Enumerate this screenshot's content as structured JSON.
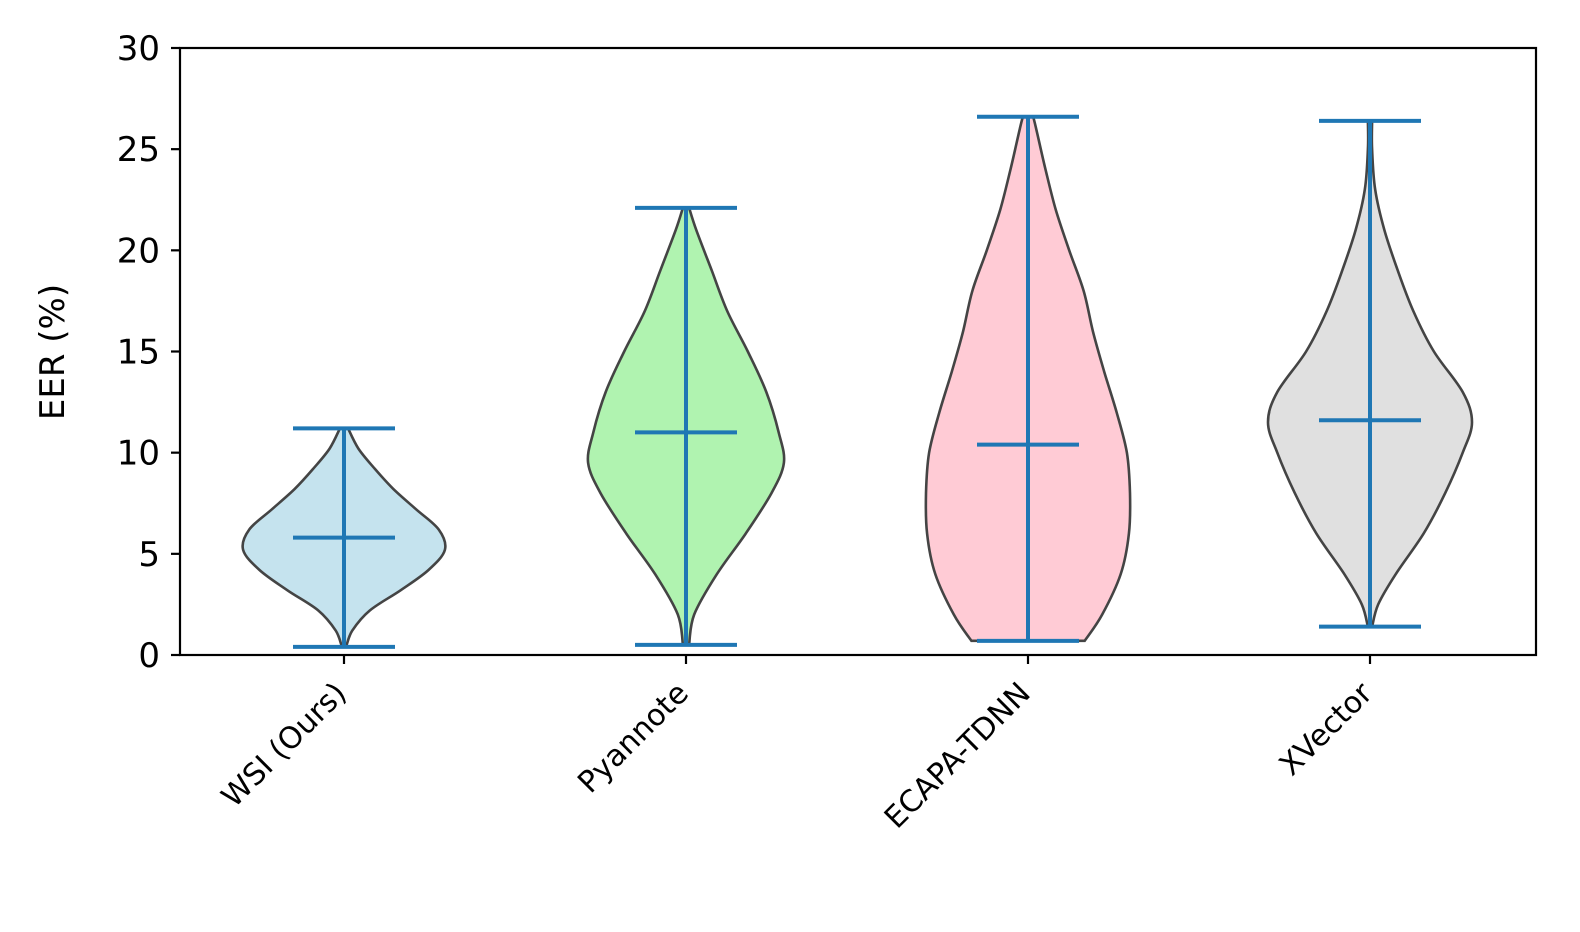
{
  "chart_data": {
    "type": "violin",
    "ylabel": "EER (%)",
    "ylim": [
      0,
      30
    ],
    "yticks": [
      "0",
      "5",
      "10",
      "15",
      "20",
      "25",
      "30"
    ],
    "categories": [
      "WSI (Ours)",
      "Pyannote",
      "ECAPA-TDNN",
      "XVector"
    ],
    "series": [
      {
        "category": "WSI (Ours)",
        "min": 0.4,
        "mean": 5.8,
        "max": 11.2,
        "fill": "#c5e3ee",
        "profile": [
          [
            0.4,
            0.02
          ],
          [
            1.2,
            0.08
          ],
          [
            2.2,
            0.25
          ],
          [
            3.2,
            0.55
          ],
          [
            4.2,
            0.82
          ],
          [
            5.2,
            0.98
          ],
          [
            6.2,
            0.92
          ],
          [
            7.2,
            0.7
          ],
          [
            8.2,
            0.48
          ],
          [
            9.2,
            0.3
          ],
          [
            10.2,
            0.14
          ],
          [
            11.2,
            0.04
          ]
        ]
      },
      {
        "category": "Pyannote",
        "min": 0.5,
        "mean": 11.0,
        "max": 22.1,
        "fill": "#b0f3b0",
        "profile": [
          [
            0.5,
            0.03
          ],
          [
            2.0,
            0.08
          ],
          [
            4.0,
            0.3
          ],
          [
            6.0,
            0.58
          ],
          [
            8.0,
            0.83
          ],
          [
            9.5,
            0.95
          ],
          [
            11.0,
            0.9
          ],
          [
            13.0,
            0.78
          ],
          [
            15.0,
            0.6
          ],
          [
            17.0,
            0.4
          ],
          [
            19.0,
            0.25
          ],
          [
            21.0,
            0.1
          ],
          [
            22.1,
            0.03
          ]
        ]
      },
      {
        "category": "ECAPA-TDNN",
        "min": 0.7,
        "mean": 10.4,
        "max": 26.6,
        "fill": "#ffcbd5",
        "profile": [
          [
            0.7,
            0.55
          ],
          [
            2.0,
            0.72
          ],
          [
            4.0,
            0.9
          ],
          [
            6.0,
            0.98
          ],
          [
            8.0,
            0.99
          ],
          [
            10.0,
            0.96
          ],
          [
            12.0,
            0.86
          ],
          [
            14.0,
            0.74
          ],
          [
            16.0,
            0.63
          ],
          [
            18.0,
            0.54
          ],
          [
            20.0,
            0.4
          ],
          [
            22.0,
            0.27
          ],
          [
            24.0,
            0.17
          ],
          [
            26.0,
            0.08
          ],
          [
            26.6,
            0.05
          ]
        ]
      },
      {
        "category": "XVector",
        "min": 1.4,
        "mean": 11.6,
        "max": 26.4,
        "fill": "#e0e0e0",
        "profile": [
          [
            1.4,
            0.02
          ],
          [
            2.5,
            0.08
          ],
          [
            4.0,
            0.25
          ],
          [
            6.0,
            0.52
          ],
          [
            8.0,
            0.73
          ],
          [
            10.0,
            0.9
          ],
          [
            11.5,
            0.99
          ],
          [
            13.0,
            0.9
          ],
          [
            15.0,
            0.62
          ],
          [
            17.0,
            0.42
          ],
          [
            19.0,
            0.27
          ],
          [
            21.0,
            0.14
          ],
          [
            23.0,
            0.05
          ],
          [
            25.0,
            0.02
          ],
          [
            26.4,
            0.02
          ]
        ]
      }
    ],
    "colors": {
      "stats": "#1f77b4",
      "outline": "#444444"
    }
  }
}
